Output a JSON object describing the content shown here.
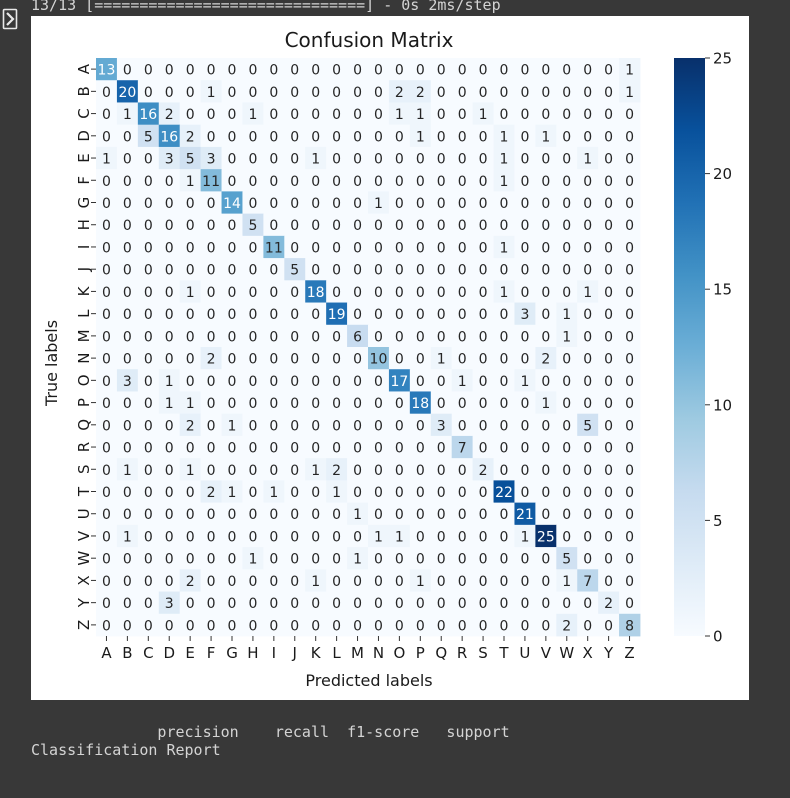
{
  "output": {
    "progress_line": "13/13 [==============================] - 0s 2ms/step",
    "report_title": "Classification Report",
    "report_header": "              precision    recall  f1-score   support"
  },
  "icons": {
    "collapse": "collapse-output-icon"
  },
  "chart_data": {
    "type": "heatmap",
    "title": "Confusion Matrix",
    "xlabel": "Predicted labels",
    "ylabel": "True labels",
    "colormap": "Blues",
    "labels": [
      "A",
      "B",
      "C",
      "D",
      "E",
      "F",
      "G",
      "H",
      "I",
      "J",
      "K",
      "L",
      "M",
      "N",
      "O",
      "P",
      "Q",
      "R",
      "S",
      "T",
      "U",
      "V",
      "W",
      "X",
      "Y",
      "Z"
    ],
    "matrix": [
      [
        13,
        0,
        0,
        0,
        0,
        0,
        0,
        0,
        0,
        0,
        0,
        0,
        0,
        0,
        0,
        0,
        0,
        0,
        0,
        0,
        0,
        0,
        0,
        0,
        0,
        1
      ],
      [
        0,
        20,
        0,
        0,
        0,
        1,
        0,
        0,
        0,
        0,
        0,
        0,
        0,
        0,
        2,
        2,
        0,
        0,
        0,
        0,
        0,
        0,
        0,
        0,
        0,
        1
      ],
      [
        0,
        1,
        16,
        2,
        0,
        0,
        0,
        1,
        0,
        0,
        0,
        0,
        0,
        0,
        1,
        1,
        0,
        0,
        1,
        0,
        0,
        0,
        0,
        0,
        0,
        0
      ],
      [
        0,
        0,
        5,
        16,
        2,
        0,
        0,
        0,
        0,
        0,
        0,
        0,
        0,
        0,
        0,
        1,
        0,
        0,
        0,
        1,
        0,
        1,
        0,
        0,
        0,
        0
      ],
      [
        1,
        0,
        0,
        3,
        5,
        3,
        0,
        0,
        0,
        0,
        1,
        0,
        0,
        0,
        0,
        0,
        0,
        0,
        0,
        1,
        0,
        0,
        0,
        1,
        0,
        0
      ],
      [
        0,
        0,
        0,
        0,
        1,
        11,
        0,
        0,
        0,
        0,
        0,
        0,
        0,
        0,
        0,
        0,
        0,
        0,
        0,
        1,
        0,
        0,
        0,
        0,
        0,
        0
      ],
      [
        0,
        0,
        0,
        0,
        0,
        0,
        14,
        0,
        0,
        0,
        0,
        0,
        0,
        1,
        0,
        0,
        0,
        0,
        0,
        0,
        0,
        0,
        0,
        0,
        0,
        0
      ],
      [
        0,
        0,
        0,
        0,
        0,
        0,
        0,
        5,
        0,
        0,
        0,
        0,
        0,
        0,
        0,
        0,
        0,
        0,
        0,
        0,
        0,
        0,
        0,
        0,
        0,
        0
      ],
      [
        0,
        0,
        0,
        0,
        0,
        0,
        0,
        0,
        11,
        0,
        0,
        0,
        0,
        0,
        0,
        0,
        0,
        0,
        0,
        1,
        0,
        0,
        0,
        0,
        0,
        0
      ],
      [
        0,
        0,
        0,
        0,
        0,
        0,
        0,
        0,
        0,
        5,
        0,
        0,
        0,
        0,
        0,
        0,
        0,
        0,
        0,
        0,
        0,
        0,
        0,
        0,
        0,
        0
      ],
      [
        0,
        0,
        0,
        0,
        1,
        0,
        0,
        0,
        0,
        0,
        18,
        0,
        0,
        0,
        0,
        0,
        0,
        0,
        0,
        1,
        0,
        0,
        0,
        1,
        0,
        0
      ],
      [
        0,
        0,
        0,
        0,
        0,
        0,
        0,
        0,
        0,
        0,
        0,
        19,
        0,
        0,
        0,
        0,
        0,
        0,
        0,
        0,
        3,
        0,
        1,
        0,
        0,
        0
      ],
      [
        0,
        0,
        0,
        0,
        0,
        0,
        0,
        0,
        0,
        0,
        0,
        0,
        6,
        0,
        0,
        0,
        0,
        0,
        0,
        0,
        0,
        0,
        1,
        0,
        0,
        0
      ],
      [
        0,
        0,
        0,
        0,
        0,
        2,
        0,
        0,
        0,
        0,
        0,
        0,
        0,
        10,
        0,
        0,
        1,
        0,
        0,
        0,
        0,
        2,
        0,
        0,
        0,
        0
      ],
      [
        0,
        3,
        0,
        1,
        0,
        0,
        0,
        0,
        0,
        0,
        0,
        0,
        0,
        0,
        17,
        0,
        0,
        1,
        0,
        0,
        1,
        0,
        0,
        0,
        0,
        0
      ],
      [
        0,
        0,
        0,
        1,
        1,
        0,
        0,
        0,
        0,
        0,
        0,
        0,
        0,
        0,
        0,
        18,
        0,
        0,
        0,
        0,
        0,
        1,
        0,
        0,
        0,
        0
      ],
      [
        0,
        0,
        0,
        0,
        2,
        0,
        1,
        0,
        0,
        0,
        0,
        0,
        0,
        0,
        0,
        0,
        3,
        0,
        0,
        0,
        0,
        0,
        0,
        5,
        0,
        0
      ],
      [
        0,
        0,
        0,
        0,
        0,
        0,
        0,
        0,
        0,
        0,
        0,
        0,
        0,
        0,
        0,
        0,
        0,
        7,
        0,
        0,
        0,
        0,
        0,
        0,
        0,
        0
      ],
      [
        0,
        1,
        0,
        0,
        1,
        0,
        0,
        0,
        0,
        0,
        1,
        2,
        0,
        0,
        0,
        0,
        0,
        0,
        2,
        0,
        0,
        0,
        0,
        0,
        0,
        0
      ],
      [
        0,
        0,
        0,
        0,
        0,
        2,
        1,
        0,
        1,
        0,
        0,
        1,
        0,
        0,
        0,
        0,
        0,
        0,
        0,
        22,
        0,
        0,
        0,
        0,
        0,
        0
      ],
      [
        0,
        0,
        0,
        0,
        0,
        0,
        0,
        0,
        0,
        0,
        0,
        0,
        1,
        0,
        0,
        0,
        0,
        0,
        0,
        0,
        21,
        0,
        0,
        0,
        0,
        0
      ],
      [
        0,
        1,
        0,
        0,
        0,
        0,
        0,
        0,
        0,
        0,
        0,
        0,
        0,
        1,
        1,
        0,
        0,
        0,
        0,
        0,
        1,
        25,
        0,
        0,
        0,
        0
      ],
      [
        0,
        0,
        0,
        0,
        0,
        0,
        0,
        1,
        0,
        0,
        0,
        0,
        1,
        0,
        0,
        0,
        0,
        0,
        0,
        0,
        0,
        0,
        5,
        0,
        0,
        0
      ],
      [
        0,
        0,
        0,
        0,
        2,
        0,
        0,
        0,
        0,
        0,
        1,
        0,
        0,
        0,
        0,
        1,
        0,
        0,
        0,
        0,
        0,
        0,
        1,
        7,
        0,
        0
      ],
      [
        0,
        0,
        0,
        3,
        0,
        0,
        0,
        0,
        0,
        0,
        0,
        0,
        0,
        0,
        0,
        0,
        0,
        0,
        0,
        0,
        0,
        0,
        0,
        0,
        2,
        0
      ],
      [
        0,
        0,
        0,
        0,
        0,
        0,
        0,
        0,
        0,
        0,
        0,
        0,
        0,
        0,
        0,
        0,
        0,
        0,
        0,
        0,
        0,
        0,
        2,
        0,
        0,
        8
      ]
    ],
    "vmin": 0,
    "vmax": 25,
    "colorbar_ticks": [
      0,
      5,
      10,
      15,
      20,
      25
    ]
  }
}
